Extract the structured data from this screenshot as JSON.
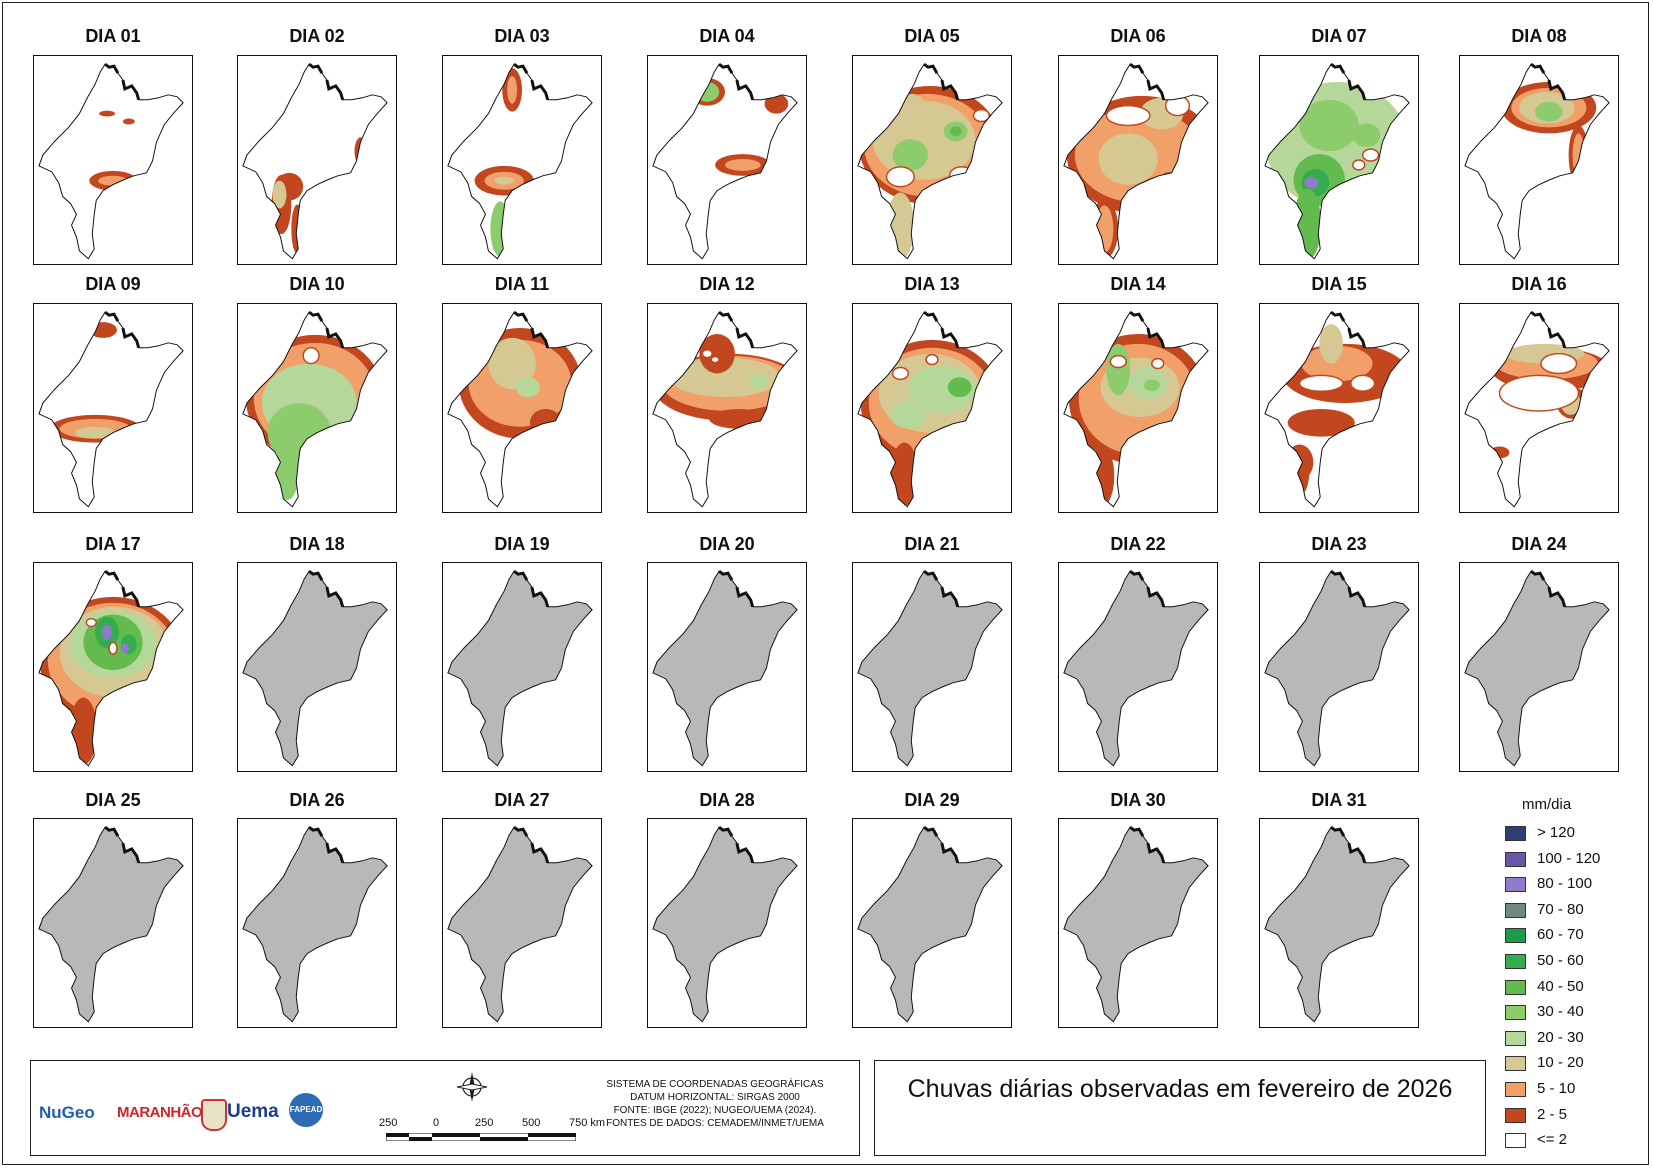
{
  "days": [
    "DIA 01",
    "DIA 02",
    "DIA 03",
    "DIA 04",
    "DIA 05",
    "DIA 06",
    "DIA 07",
    "DIA 08",
    "DIA 09",
    "DIA 10",
    "DIA 11",
    "DIA 12",
    "DIA 13",
    "DIA 14",
    "DIA 15",
    "DIA 16",
    "DIA 17",
    "DIA 18",
    "DIA 19",
    "DIA 20",
    "DIA 21",
    "DIA 22",
    "DIA 23",
    "DIA 24",
    "DIA 25",
    "DIA 26",
    "DIA 27",
    "DIA 28",
    "DIA 29",
    "DIA 30",
    "DIA 31"
  ],
  "observed_days": 17,
  "no_data_color": "#b8b8b8",
  "legend": {
    "title": "mm/dia",
    "classes": [
      {
        "label": "> 120",
        "color": "#2f3f73"
      },
      {
        "label": "100 - 120",
        "color": "#6a56a8"
      },
      {
        "label": "80 - 100",
        "color": "#8f7bc9"
      },
      {
        "label": "70 - 80",
        "color": "#6d8a80"
      },
      {
        "label": "60 - 70",
        "color": "#1f9a4c"
      },
      {
        "label": "50 - 60",
        "color": "#33ad4f"
      },
      {
        "label": "40 - 50",
        "color": "#62bb4c"
      },
      {
        "label": "30 - 40",
        "color": "#8ccc6c"
      },
      {
        "label": "20 - 30",
        "color": "#b5d89a"
      },
      {
        "label": "10 - 20",
        "color": "#d6c893"
      },
      {
        "label": "5 - 10",
        "color": "#f0a068"
      },
      {
        "label": "2 - 5",
        "color": "#c2471f"
      },
      {
        "label": "<= 2",
        "color": "#ffffff"
      }
    ]
  },
  "logos": [
    "NuGeo",
    "MARANHÃO",
    "Uema",
    "FAPEAD"
  ],
  "crs_lines": [
    "SISTEMA DE COORDENADAS GEOGRÁFICAS",
    "DATUM HORIZONTAL: SIRGAS 2000",
    "FONTE: IBGE (2022); NUGEO/UEMA (2024).",
    "FONTES DE DADOS: CEMADEM/INMET/UEMA"
  ],
  "scale_labels": [
    "250",
    "0",
    "250",
    "500",
    "750 km"
  ],
  "title": "Chuvas diárias observadas em fevereiro de 2026"
}
